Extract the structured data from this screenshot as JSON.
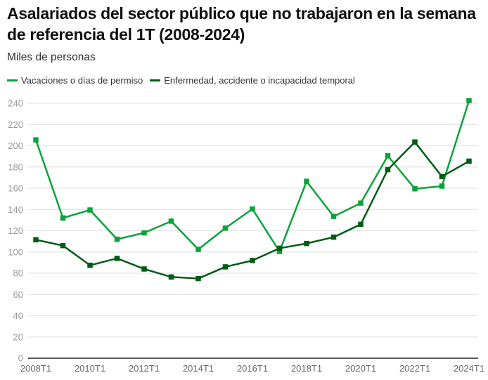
{
  "chart_data": {
    "type": "line",
    "title": "Asalariados del sector público que no trabajaron en la semana de referencia del 1T (2008-2024)",
    "subtitle": "Miles de personas",
    "xlabel": "",
    "ylabel": "",
    "x": [
      "2008T1",
      "2009T1",
      "2010T1",
      "2011T1",
      "2012T1",
      "2013T1",
      "2014T1",
      "2015T1",
      "2016T1",
      "2017T1",
      "2018T1",
      "2019T1",
      "2020T1",
      "2021T1",
      "2022T1",
      "2023T1",
      "2024T1"
    ],
    "x_tick_labels": [
      "2008T1",
      "2010T1",
      "2012T1",
      "2014T1",
      "2016T1",
      "2018T1",
      "2020T1",
      "2022T1",
      "2024T1"
    ],
    "y_ticks": [
      0,
      20,
      40,
      60,
      80,
      100,
      120,
      140,
      160,
      180,
      200,
      220,
      240
    ],
    "ylim": [
      0,
      240
    ],
    "grid": true,
    "legend_position": "top-left",
    "series": [
      {
        "name": "Vacaciones o días de permiso",
        "color": "#0aa33b",
        "values": [
          205.5,
          132,
          139.5,
          112,
          118,
          129,
          102.5,
          122.5,
          140.5,
          100.5,
          166.5,
          133.5,
          146,
          190.5,
          159.5,
          162,
          242.5
        ]
      },
      {
        "name": "Enfermedad, accidente o incapacidad temporal",
        "color": "#005c14",
        "values": [
          111.5,
          106,
          87.5,
          94,
          84,
          76.5,
          75,
          86,
          92,
          103.5,
          108,
          114,
          126,
          177.5,
          203.5,
          171,
          185.5
        ]
      }
    ]
  }
}
